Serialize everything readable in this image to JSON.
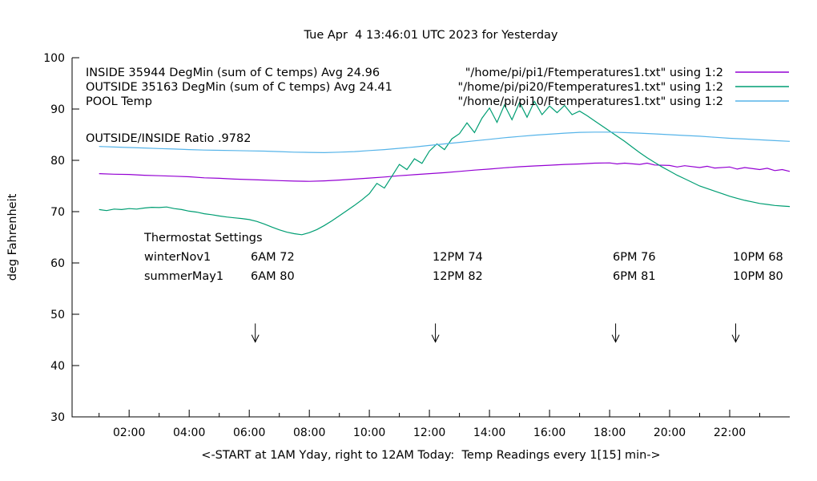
{
  "annotations": {
    "inside_label": "INSIDE 35944 DegMin (sum of C temps) Avg 24.96",
    "outside_label": "OUTSIDE 35163 DegMin (sum of C temps) Avg 24.41",
    "pool_label": "POOL Temp",
    "ratio_label": "OUTSIDE/INSIDE Ratio .9782"
  },
  "legend": {
    "rows": [
      {
        "label": "\"/home/pi/pi1/Ftemperatures1.txt\" using 1:2",
        "color": "#9400d3"
      },
      {
        "label": "\"/home/pi/pi20/Ftemperatures1.txt\" using 1:2",
        "color": "#009e73"
      },
      {
        "label": "\"/home/pi/pi10/Ftemperatures1.txt\" using 1:2",
        "color": "#56b4e9"
      }
    ]
  },
  "thermostat": {
    "title": "Thermostat Settings",
    "rows": [
      {
        "label": "winterNov1",
        "cols": [
          "6AM 72",
          "12PM 74",
          "6PM 76",
          "10PM 68"
        ]
      },
      {
        "label": "summerMay1",
        "cols": [
          "6AM 80",
          "12PM 82",
          "6PM 81",
          "10PM 80"
        ]
      }
    ]
  },
  "chart_data": {
    "type": "line",
    "title": "Tue Apr  4 13:46:01 UTC 2023 for Yesterday",
    "xlabel": "<-START at 1AM Yday, right to 12AM Today:  Temp Readings every 1[15] min->",
    "ylabel": "deg Fahrenheit",
    "xlim": [
      0.1,
      24.0
    ],
    "ylim": [
      30,
      100
    ],
    "grid": false,
    "legend_position": "top-right",
    "yticks": [
      30,
      40,
      50,
      60,
      70,
      80,
      90,
      100
    ],
    "xticks": [
      {
        "value": 2,
        "label": "02:00"
      },
      {
        "value": 4,
        "label": "04:00"
      },
      {
        "value": 6,
        "label": "06:00"
      },
      {
        "value": 8,
        "label": "08:00"
      },
      {
        "value": 10,
        "label": "10:00"
      },
      {
        "value": 12,
        "label": "12:00"
      },
      {
        "value": 14,
        "label": "14:00"
      },
      {
        "value": 16,
        "label": "16:00"
      },
      {
        "value": 18,
        "label": "18:00"
      },
      {
        "value": 20,
        "label": "20:00"
      },
      {
        "value": 22,
        "label": "22:00"
      }
    ],
    "xminor": [
      1,
      3,
      5,
      7,
      9,
      11,
      13,
      15,
      17,
      19,
      21,
      23
    ],
    "arrows": {
      "x_hours": [
        6.2,
        12.2,
        18.2,
        22.2
      ],
      "y_from": 48.2,
      "y_to": 44.6
    },
    "series": [
      {
        "name": "INSIDE",
        "color": "#9400d3",
        "points": [
          [
            1,
            77.4
          ],
          [
            1.5,
            77.3
          ],
          [
            2,
            77.25
          ],
          [
            2.5,
            77.1
          ],
          [
            3,
            77.0
          ],
          [
            3.5,
            76.9
          ],
          [
            4,
            76.8
          ],
          [
            4.5,
            76.6
          ],
          [
            5,
            76.5
          ],
          [
            5.5,
            76.35
          ],
          [
            6,
            76.25
          ],
          [
            6.5,
            76.15
          ],
          [
            7,
            76.05
          ],
          [
            7.5,
            75.95
          ],
          [
            8,
            75.9
          ],
          [
            8.5,
            76.0
          ],
          [
            9,
            76.15
          ],
          [
            9.5,
            76.35
          ],
          [
            10,
            76.55
          ],
          [
            10.5,
            76.75
          ],
          [
            11,
            77.0
          ],
          [
            11.5,
            77.2
          ],
          [
            12,
            77.4
          ],
          [
            12.5,
            77.6
          ],
          [
            13,
            77.85
          ],
          [
            13.5,
            78.1
          ],
          [
            14,
            78.3
          ],
          [
            14.5,
            78.55
          ],
          [
            15,
            78.75
          ],
          [
            15.5,
            78.9
          ],
          [
            16,
            79.05
          ],
          [
            16.5,
            79.2
          ],
          [
            17,
            79.3
          ],
          [
            17.5,
            79.45
          ],
          [
            18,
            79.5
          ],
          [
            18.25,
            79.3
          ],
          [
            18.5,
            79.45
          ],
          [
            19,
            79.2
          ],
          [
            19.25,
            79.45
          ],
          [
            19.5,
            79.1
          ],
          [
            20,
            79.0
          ],
          [
            20.25,
            78.7
          ],
          [
            20.5,
            78.95
          ],
          [
            21,
            78.6
          ],
          [
            21.25,
            78.85
          ],
          [
            21.5,
            78.5
          ],
          [
            22,
            78.7
          ],
          [
            22.25,
            78.3
          ],
          [
            22.5,
            78.6
          ],
          [
            23,
            78.2
          ],
          [
            23.25,
            78.45
          ],
          [
            23.5,
            78.0
          ],
          [
            23.75,
            78.2
          ],
          [
            24,
            77.85
          ]
        ]
      },
      {
        "name": "OUTSIDE",
        "color": "#009e73",
        "points": [
          [
            1,
            70.4
          ],
          [
            1.25,
            70.2
          ],
          [
            1.5,
            70.5
          ],
          [
            1.75,
            70.4
          ],
          [
            2,
            70.6
          ],
          [
            2.25,
            70.5
          ],
          [
            2.5,
            70.7
          ],
          [
            2.75,
            70.85
          ],
          [
            3,
            70.8
          ],
          [
            3.25,
            70.9
          ],
          [
            3.5,
            70.6
          ],
          [
            3.75,
            70.4
          ],
          [
            4,
            70.1
          ],
          [
            4.25,
            69.9
          ],
          [
            4.5,
            69.6
          ],
          [
            4.75,
            69.4
          ],
          [
            5,
            69.15
          ],
          [
            5.25,
            68.95
          ],
          [
            5.5,
            68.8
          ],
          [
            5.75,
            68.65
          ],
          [
            6,
            68.45
          ],
          [
            6.25,
            68.1
          ],
          [
            6.5,
            67.6
          ],
          [
            6.75,
            67.0
          ],
          [
            7,
            66.45
          ],
          [
            7.25,
            66.0
          ],
          [
            7.5,
            65.7
          ],
          [
            7.75,
            65.5
          ],
          [
            8,
            65.9
          ],
          [
            8.25,
            66.5
          ],
          [
            8.5,
            67.3
          ],
          [
            8.75,
            68.2
          ],
          [
            9,
            69.2
          ],
          [
            9.25,
            70.2
          ],
          [
            9.5,
            71.2
          ],
          [
            9.75,
            72.3
          ],
          [
            10,
            73.5
          ],
          [
            10.25,
            75.5
          ],
          [
            10.5,
            74.6
          ],
          [
            10.75,
            76.9
          ],
          [
            11,
            79.2
          ],
          [
            11.25,
            78.2
          ],
          [
            11.5,
            80.3
          ],
          [
            11.75,
            79.4
          ],
          [
            12,
            81.8
          ],
          [
            12.25,
            83.2
          ],
          [
            12.5,
            82.1
          ],
          [
            12.75,
            84.2
          ],
          [
            13,
            85.2
          ],
          [
            13.25,
            87.3
          ],
          [
            13.5,
            85.4
          ],
          [
            13.75,
            88.2
          ],
          [
            14,
            90.2
          ],
          [
            14.25,
            87.4
          ],
          [
            14.5,
            90.8
          ],
          [
            14.75,
            87.9
          ],
          [
            15,
            91.3
          ],
          [
            15.25,
            88.4
          ],
          [
            15.5,
            91.5
          ],
          [
            15.75,
            88.9
          ],
          [
            16,
            90.6
          ],
          [
            16.25,
            89.3
          ],
          [
            16.5,
            90.7
          ],
          [
            16.75,
            88.9
          ],
          [
            17,
            89.6
          ],
          [
            17.25,
            88.7
          ],
          [
            17.5,
            87.7
          ],
          [
            17.75,
            86.7
          ],
          [
            18,
            85.7
          ],
          [
            18.25,
            84.7
          ],
          [
            18.5,
            83.7
          ],
          [
            18.75,
            82.6
          ],
          [
            19,
            81.5
          ],
          [
            19.25,
            80.5
          ],
          [
            19.5,
            79.6
          ],
          [
            19.75,
            78.7
          ],
          [
            20,
            77.9
          ],
          [
            20.25,
            77.1
          ],
          [
            20.5,
            76.4
          ],
          [
            20.75,
            75.7
          ],
          [
            21,
            75.0
          ],
          [
            21.25,
            74.5
          ],
          [
            21.5,
            74.0
          ],
          [
            21.75,
            73.5
          ],
          [
            22,
            73.0
          ],
          [
            22.25,
            72.6
          ],
          [
            22.5,
            72.2
          ],
          [
            22.75,
            71.9
          ],
          [
            23,
            71.6
          ],
          [
            23.25,
            71.4
          ],
          [
            23.5,
            71.2
          ],
          [
            23.75,
            71.1
          ],
          [
            24,
            71.0
          ]
        ]
      },
      {
        "name": "POOL",
        "color": "#56b4e9",
        "points": [
          [
            1,
            82.7
          ],
          [
            1.5,
            82.6
          ],
          [
            2,
            82.5
          ],
          [
            2.5,
            82.4
          ],
          [
            3,
            82.3
          ],
          [
            3.5,
            82.2
          ],
          [
            4,
            82.1
          ],
          [
            4.5,
            82.0
          ],
          [
            5,
            81.95
          ],
          [
            5.5,
            81.9
          ],
          [
            6,
            81.85
          ],
          [
            6.5,
            81.8
          ],
          [
            7,
            81.7
          ],
          [
            7.5,
            81.6
          ],
          [
            8,
            81.55
          ],
          [
            8.5,
            81.5
          ],
          [
            9,
            81.6
          ],
          [
            9.5,
            81.7
          ],
          [
            10,
            81.9
          ],
          [
            10.5,
            82.1
          ],
          [
            11,
            82.35
          ],
          [
            11.5,
            82.6
          ],
          [
            12,
            82.9
          ],
          [
            12.5,
            83.2
          ],
          [
            13,
            83.5
          ],
          [
            13.5,
            83.8
          ],
          [
            14,
            84.1
          ],
          [
            14.5,
            84.4
          ],
          [
            15,
            84.65
          ],
          [
            15.5,
            84.9
          ],
          [
            16,
            85.1
          ],
          [
            16.5,
            85.3
          ],
          [
            17,
            85.45
          ],
          [
            17.5,
            85.5
          ],
          [
            18,
            85.5
          ],
          [
            18.5,
            85.4
          ],
          [
            19,
            85.3
          ],
          [
            19.5,
            85.15
          ],
          [
            20,
            85.0
          ],
          [
            20.5,
            84.85
          ],
          [
            21,
            84.7
          ],
          [
            21.5,
            84.5
          ],
          [
            22,
            84.3
          ],
          [
            22.5,
            84.15
          ],
          [
            23,
            84.0
          ],
          [
            23.5,
            83.85
          ],
          [
            24,
            83.7
          ]
        ]
      }
    ]
  }
}
